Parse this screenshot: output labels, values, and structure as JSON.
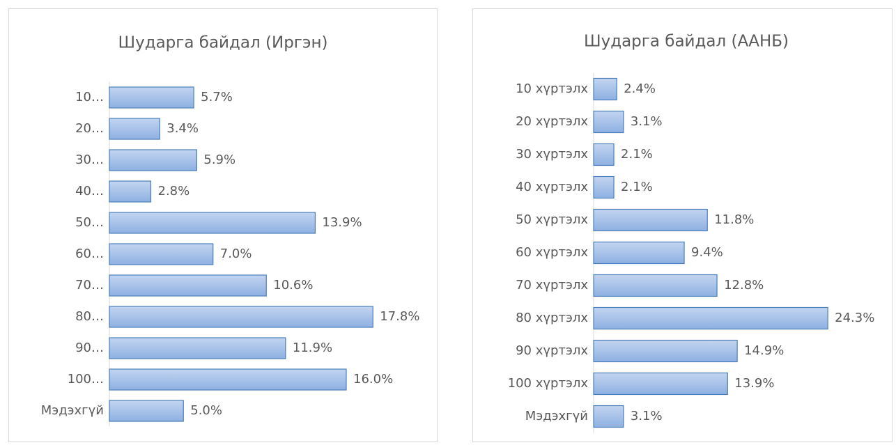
{
  "chart_data": [
    {
      "type": "bar",
      "orientation": "horizontal",
      "title": "Шударга байдал (Иргэн)",
      "categories": [
        "10…",
        "20…",
        "30…",
        "40…",
        "50…",
        "60…",
        "70…",
        "80…",
        "90…",
        "100…",
        "Мэдэхгүй"
      ],
      "values": [
        5.7,
        3.4,
        5.9,
        2.8,
        13.9,
        7.0,
        10.6,
        17.8,
        11.9,
        16.0,
        5.0
      ],
      "value_labels": [
        "5.7%",
        "3.4%",
        "5.9%",
        "2.8%",
        "13.9%",
        "7.0%",
        "10.6%",
        "17.8%",
        "11.9%",
        "16.0%",
        "5.0%"
      ],
      "xlim": [
        0,
        20
      ],
      "color": "#9dbbe6"
    },
    {
      "type": "bar",
      "orientation": "horizontal",
      "title": "Шударга байдал (ААНБ)",
      "categories": [
        "10 хүртэлх",
        "20 хүртэлх",
        "30 хүртэлх",
        "40 хүртэлх",
        "50 хүртэлх",
        "60 хүртэлх",
        "70 хүртэлх",
        "80 хүртэлх",
        "90 хүртэлх",
        "100 хүртэлх",
        "Мэдэхгүй"
      ],
      "values": [
        2.4,
        3.1,
        2.1,
        2.1,
        11.8,
        9.4,
        12.8,
        24.3,
        14.9,
        13.9,
        3.1
      ],
      "value_labels": [
        "2.4%",
        "3.1%",
        "2.1%",
        "2.1%",
        "11.8%",
        "9.4%",
        "12.8%",
        "24.3%",
        "14.9%",
        "13.9%",
        "3.1%"
      ],
      "xlim": [
        0,
        30
      ],
      "color": "#9dbbe6"
    }
  ]
}
